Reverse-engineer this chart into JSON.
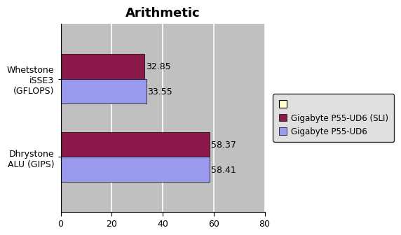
{
  "title": "Arithmetic",
  "categories": [
    "Dhrystone\nALU (GIPS)",
    "Whetstone\niSSE3\n(GFLOPS)"
  ],
  "series": [
    {
      "name": "Gigabyte P55-UD6 (SLI)",
      "color": "#8B1A4A",
      "values": [
        58.37,
        32.85
      ]
    },
    {
      "name": "Gigabyte P55-UD6",
      "color": "#9999EE",
      "values": [
        58.41,
        33.55
      ]
    }
  ],
  "xlim": [
    0,
    80
  ],
  "xticks": [
    0,
    20,
    40,
    60,
    80
  ],
  "bar_height": 0.32,
  "plot_bg_color": "#C0C0C0",
  "outer_bg_color": "#FFFFFF",
  "legend_extra_color": "#FFFFCC",
  "grid_color": "#FFFFFF",
  "label_fontsize": 9,
  "title_fontsize": 13,
  "value_label_fontsize": 9
}
